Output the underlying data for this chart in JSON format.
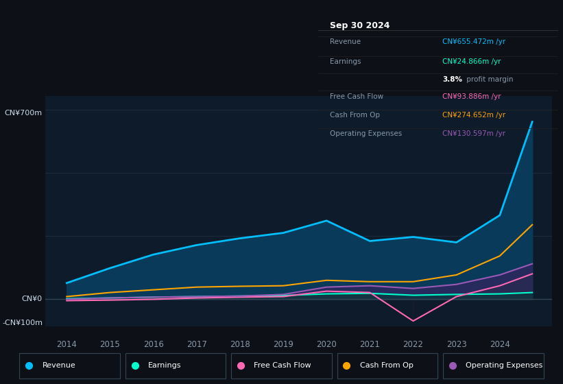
{
  "background_color": "#0d1117",
  "plot_bg_color": "#0d1b2a",
  "ylim": [
    -100,
    750
  ],
  "years": [
    2014,
    2015,
    2016,
    2017,
    2018,
    2019,
    2020,
    2021,
    2022,
    2023,
    2024,
    2024.75
  ],
  "revenue": [
    60,
    115,
    165,
    200,
    225,
    245,
    290,
    215,
    230,
    210,
    310,
    655
  ],
  "earnings": [
    2,
    5,
    8,
    10,
    12,
    14,
    20,
    22,
    15,
    18,
    20,
    25
  ],
  "free_cash_flow": [
    -5,
    -3,
    0,
    5,
    8,
    10,
    30,
    25,
    -80,
    10,
    50,
    94
  ],
  "cash_from_op": [
    10,
    25,
    35,
    45,
    48,
    50,
    70,
    65,
    65,
    90,
    160,
    275
  ],
  "operating_expenses": [
    0,
    5,
    8,
    10,
    12,
    18,
    45,
    50,
    40,
    55,
    90,
    131
  ],
  "revenue_color": "#00bfff",
  "earnings_color": "#00ffcc",
  "free_cash_flow_color": "#ff69b4",
  "cash_from_op_color": "#ffa500",
  "operating_expenses_color": "#9b59b6",
  "revenue_fill": "#0a3a5a",
  "legend_items": [
    "Revenue",
    "Earnings",
    "Free Cash Flow",
    "Cash From Op",
    "Operating Expenses"
  ],
  "legend_colors": [
    "#00bfff",
    "#00ffcc",
    "#ff69b4",
    "#ffa500",
    "#9b59b6"
  ],
  "info_box": {
    "date": "Sep 30 2024",
    "revenue_val": "CN¥655.472m",
    "earnings_val": "CN¥24.866m",
    "profit_margin": "3.8%",
    "fcf_val": "CN¥93.886m",
    "cash_from_op_val": "CN¥274.652m",
    "op_exp_val": "CN¥130.597m"
  },
  "grid_color": "#1e2d3d",
  "text_color": "#8899aa",
  "text_color_white": "#ccddee",
  "ylabel_top": "CN¥700m",
  "ylabel_zero": "CN¥0",
  "ylabel_bottom": "-CN¥100m",
  "x_tick_labels": [
    2014,
    2015,
    2016,
    2017,
    2018,
    2019,
    2020,
    2021,
    2022,
    2023,
    2024
  ]
}
